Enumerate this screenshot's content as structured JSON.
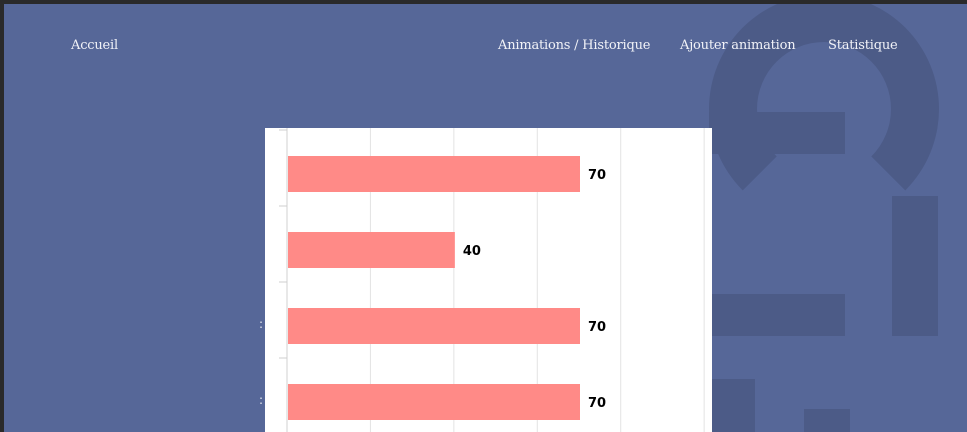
{
  "nav": {
    "home": "Accueil",
    "history": "Animations / Historique",
    "add": "Ajouter animation",
    "stats": "Statistique"
  },
  "colors": {
    "background": "#566798",
    "bar": "#ff8a87",
    "panel": "#ffffff"
  },
  "chart_data": {
    "type": "bar",
    "orientation": "horizontal",
    "values": [
      70,
      40,
      70,
      70
    ],
    "xlim": [
      0,
      100
    ],
    "grid": true
  }
}
